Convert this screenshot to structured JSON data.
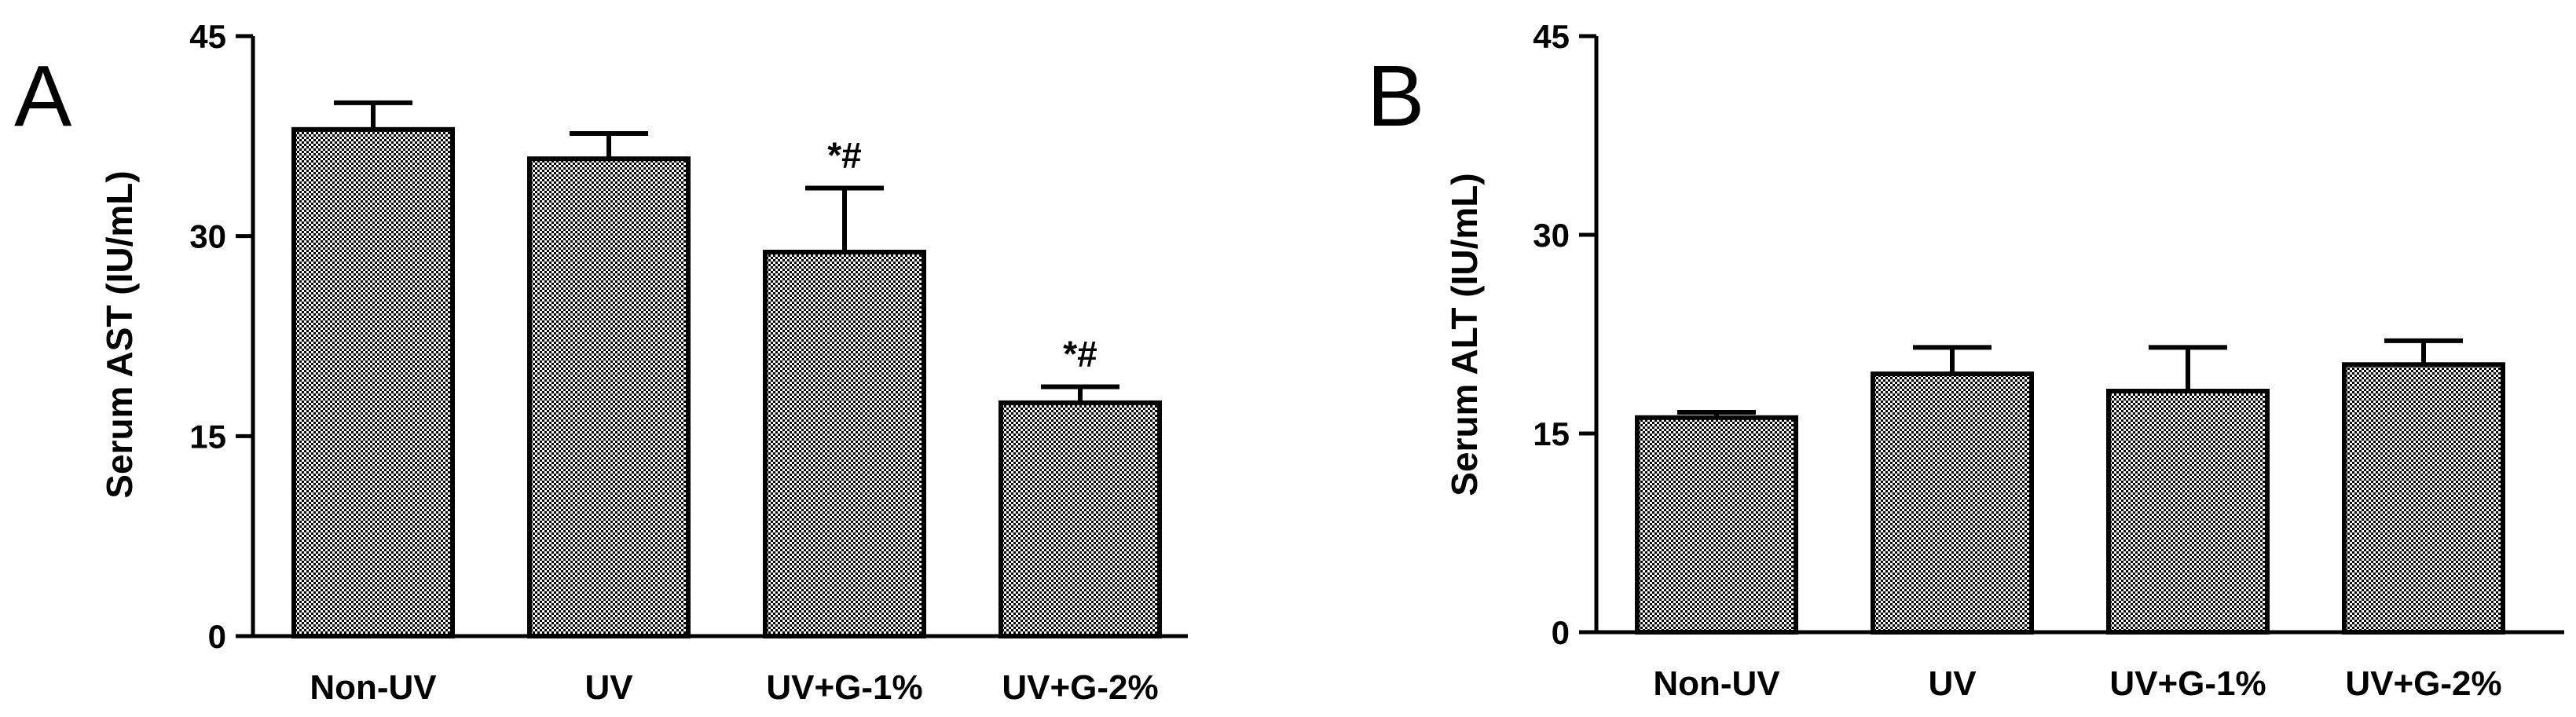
{
  "chart_data": [
    {
      "type": "bar",
      "panel_label": "A",
      "ylabel": "Serum AST (IU/mL)",
      "ylim": [
        0,
        45
      ],
      "yticks": [
        "0",
        "15",
        "30",
        "45"
      ],
      "categories": [
        "Non-UV",
        "UV",
        "UV+G-1%",
        "UV+G-2%"
      ],
      "values": [
        38,
        35.8,
        28.8,
        17.5
      ],
      "errors": [
        2.0,
        1.9,
        4.8,
        1.2
      ],
      "annotations": [
        "",
        "",
        "*#",
        "*#"
      ],
      "bar_fill": "checkered"
    },
    {
      "type": "bar",
      "panel_label": "B",
      "ylabel": "Serum ALT (IU/mL)",
      "ylim": [
        0,
        45
      ],
      "yticks": [
        "0",
        "15",
        "30",
        "45"
      ],
      "categories": [
        "Non-UV",
        "UV",
        "UV+G-1%",
        "UV+G-2%"
      ],
      "values": [
        16.2,
        19.5,
        18.2,
        20.2
      ],
      "errors": [
        0.4,
        2.0,
        3.3,
        1.8
      ],
      "annotations": [
        "",
        "",
        "",
        ""
      ],
      "bar_fill": "checkered"
    }
  ]
}
